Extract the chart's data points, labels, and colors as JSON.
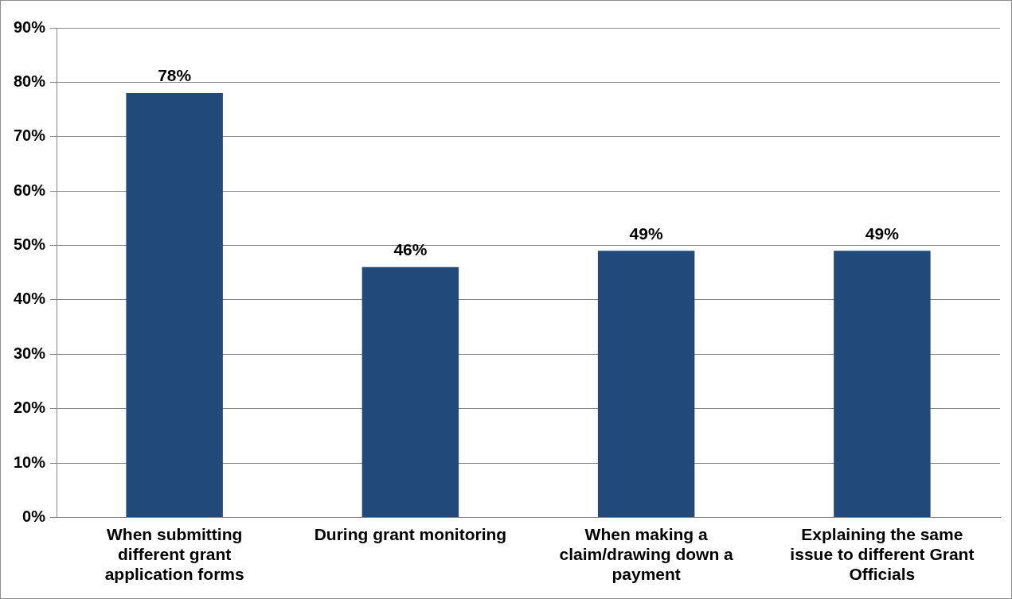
{
  "chart_data": {
    "type": "bar",
    "categories": [
      "When submitting different grant application forms",
      "During grant monitoring",
      "When making a claim/drawing down a payment",
      "Explaining the same issue to different Grant Officials"
    ],
    "values": [
      78,
      46,
      49,
      49
    ],
    "value_labels": [
      "78%",
      "46%",
      "49%",
      "49%"
    ],
    "color": "#214a7b",
    "ylim": [
      0,
      90
    ],
    "yticks": [
      {
        "value": 0,
        "label": "0%"
      },
      {
        "value": 10,
        "label": "10%"
      },
      {
        "value": 20,
        "label": "20%"
      },
      {
        "value": 30,
        "label": "30%"
      },
      {
        "value": 40,
        "label": "40%"
      },
      {
        "value": 50,
        "label": "50%"
      },
      {
        "value": 60,
        "label": "60%"
      },
      {
        "value": 70,
        "label": "70%"
      },
      {
        "value": 80,
        "label": "80%"
      },
      {
        "value": 90,
        "label": "90%"
      }
    ],
    "grid": "y",
    "legend": false
  }
}
